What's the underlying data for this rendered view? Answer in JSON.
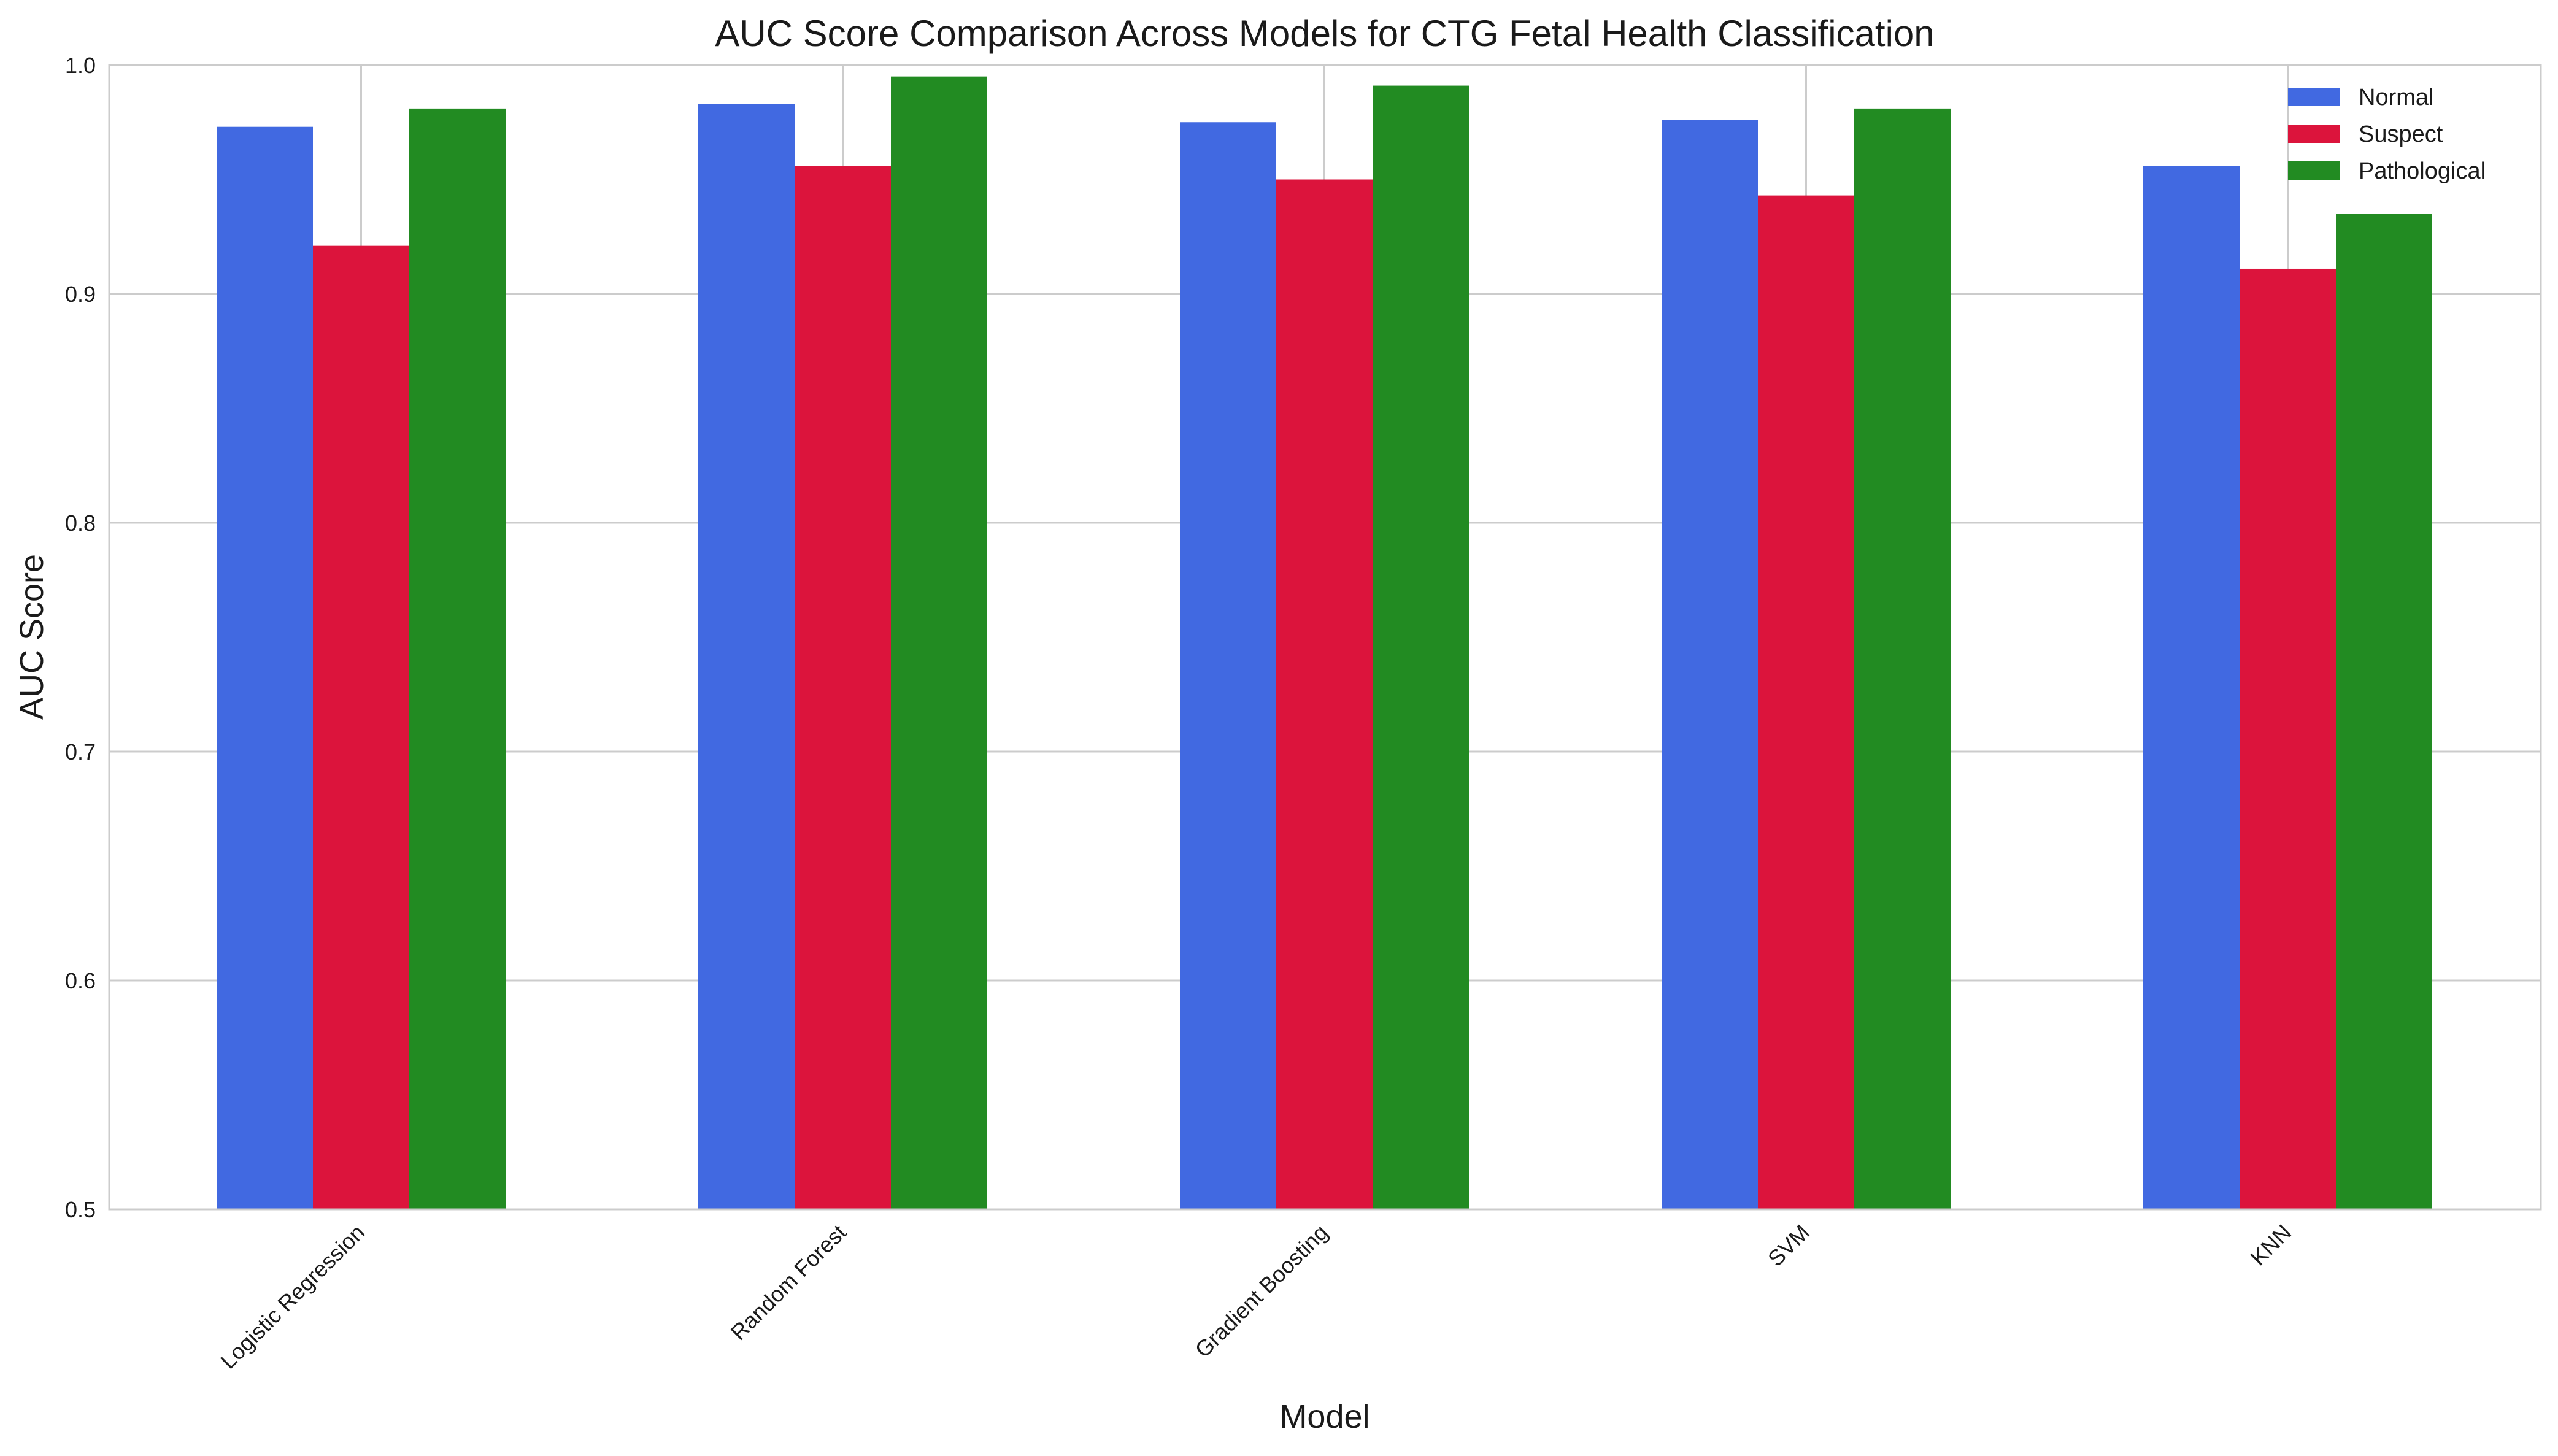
{
  "chart_data": {
    "type": "bar",
    "title": "AUC Score Comparison Across Models for CTG Fetal Health Classification",
    "xlabel": "Model",
    "ylabel": "AUC Score",
    "categories": [
      "Logistic Regression",
      "Random Forest",
      "Gradient Boosting",
      "SVM",
      "KNN"
    ],
    "series": [
      {
        "name": "Normal",
        "color": "#4169e1",
        "values": [
          0.973,
          0.983,
          0.975,
          0.976,
          0.956
        ]
      },
      {
        "name": "Suspect",
        "color": "#dc143c",
        "values": [
          0.921,
          0.956,
          0.95,
          0.943,
          0.911
        ]
      },
      {
        "name": "Pathological",
        "color": "#228b22",
        "values": [
          0.981,
          0.995,
          0.991,
          0.981,
          0.935
        ]
      }
    ],
    "ylim": [
      0.5,
      1.0
    ],
    "yticks": [
      "0.5",
      "0.6",
      "0.7",
      "0.8",
      "0.9",
      "1.0"
    ],
    "ytick_values": [
      0.5,
      0.6,
      0.7,
      0.8,
      0.9,
      1.0
    ],
    "grid": true,
    "legend_position": "top-right",
    "x_tick_label_rotation": "45 degrees"
  }
}
